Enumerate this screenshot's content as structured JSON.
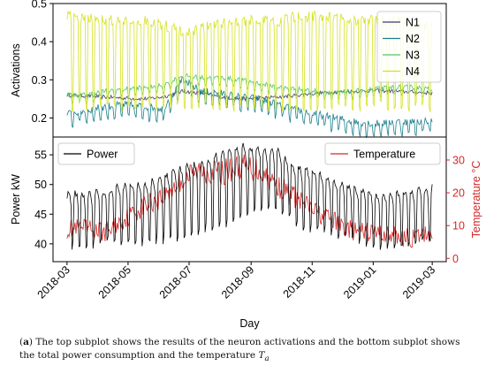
{
  "chart_data": [
    {
      "type": "line",
      "title": "",
      "xlabel": "",
      "ylabel": "Activations",
      "ylim": [
        0.15,
        0.5
      ],
      "yticks": [
        "0.2",
        "0.3",
        "0.4",
        "0.5"
      ],
      "xlim": [
        "2018-03-01",
        "2019-03-01"
      ],
      "legend_placement": "top-right",
      "x_start": "2018-03-01",
      "x_end": "2019-03-01",
      "series": [
        {
          "name": "N1",
          "color": "#3b3b6d",
          "values": [
            0.26,
            0.258,
            0.255,
            0.252,
            0.25,
            0.255,
            0.27,
            0.265,
            0.255,
            0.25,
            0.252,
            0.255,
            0.26,
            0.265,
            0.268,
            0.27,
            0.272,
            0.27,
            0.268,
            0.265
          ]
        },
        {
          "name": "N2",
          "color": "#1a7f8e",
          "values": [
            0.2,
            0.21,
            0.22,
            0.225,
            0.22,
            0.215,
            0.29,
            0.26,
            0.255,
            0.245,
            0.24,
            0.225,
            0.21,
            0.2,
            0.19,
            0.18,
            0.175,
            0.18,
            0.18,
            0.185
          ]
        },
        {
          "name": "N3",
          "color": "#4fc46a",
          "values": [
            0.255,
            0.255,
            0.265,
            0.27,
            0.275,
            0.28,
            0.305,
            0.3,
            0.3,
            0.295,
            0.285,
            0.275,
            0.27,
            0.265,
            0.26,
            0.265,
            0.27,
            0.275,
            0.275,
            0.27
          ]
        },
        {
          "name": "N4",
          "color": "#d5e21f",
          "values": [
            0.48,
            0.48,
            0.47,
            0.47,
            0.47,
            0.46,
            0.44,
            0.45,
            0.46,
            0.47,
            0.47,
            0.47,
            0.48,
            0.48,
            0.48,
            0.47,
            0.47,
            0.47,
            0.46,
            0.46
          ]
        }
      ]
    },
    {
      "type": "line",
      "title": "",
      "xlabel": "Day",
      "ylabel": "Power kW",
      "y2label": "Temperature °C",
      "ylim": [
        37,
        58
      ],
      "yticks": [
        "40",
        "45",
        "50",
        "55"
      ],
      "y2lim": [
        -1,
        37
      ],
      "y2ticks": [
        "0",
        "10",
        "20",
        "30"
      ],
      "xlim": [
        "2018-03-01",
        "2019-03-01"
      ],
      "xticks": [
        "2018-03",
        "2018-05",
        "2018-07",
        "2018-09",
        "2018-11",
        "2019-01",
        "2019-03"
      ],
      "legend_left": "Power",
      "legend_right": "Temperature",
      "x_start": "2018-03-01",
      "x_end": "2019-03-01",
      "series": [
        {
          "name": "Power",
          "axis": "left",
          "color": "#000000",
          "values": [
            44,
            44,
            44.5,
            45,
            45,
            46,
            47,
            48,
            49,
            50.5,
            51,
            50.5,
            48,
            47,
            46,
            45,
            44,
            44,
            44.5,
            45
          ],
          "amplitude": [
            4.5,
            4.5,
            4.5,
            5,
            5,
            5.5,
            6,
            6,
            6.5,
            6,
            5.5,
            5,
            5,
            5,
            4.5,
            4.5,
            4.5,
            4.5,
            4.5,
            4.5
          ]
        },
        {
          "name": "Temperature",
          "axis": "right",
          "color": "#d62728",
          "values": [
            9,
            9,
            8,
            12,
            16,
            19,
            24,
            27,
            26,
            28,
            27,
            22,
            18,
            14,
            11,
            8,
            8,
            7,
            6,
            8
          ],
          "amplitude": [
            3,
            3,
            3,
            3,
            3.5,
            3.5,
            4,
            4,
            4,
            4,
            4,
            3.5,
            3.5,
            3,
            3,
            3,
            3,
            3,
            3,
            3
          ]
        }
      ]
    }
  ],
  "caption": {
    "label": "a",
    "text_before": "The top subplot shows the results of the neuron activations and the bottom subplot shows the total power consumption and the temperature",
    "symbol": "T",
    "subscript": "a"
  },
  "colors": {
    "axis": "#000000",
    "temp_axis": "#d62728"
  }
}
